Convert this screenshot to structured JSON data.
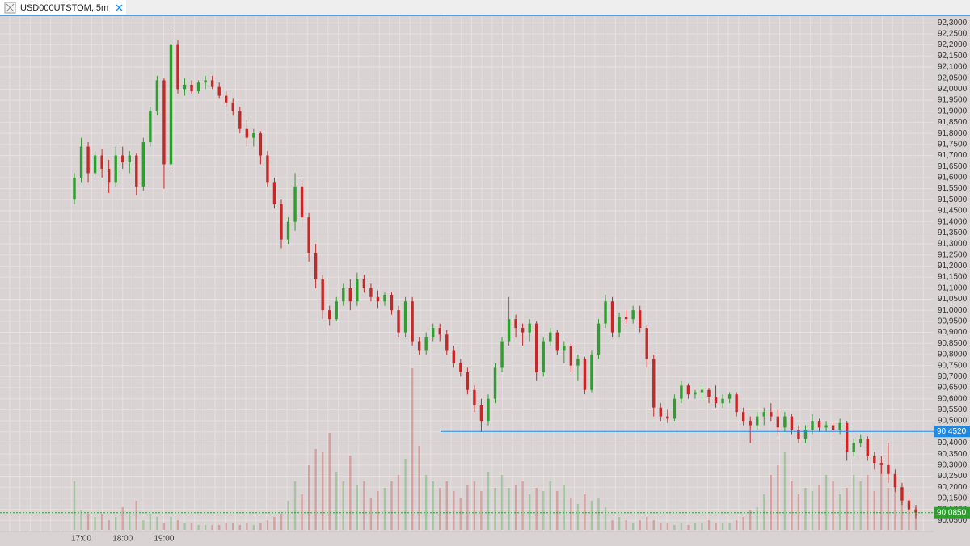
{
  "tab": {
    "title": "USD000UTSTOM, 5m"
  },
  "chart_data": {
    "type": "candlestick",
    "categories": [
      null,
      "17:00",
      null,
      null,
      null,
      null,
      null,
      "18:00",
      null,
      null,
      null,
      null,
      null,
      "19:00",
      null,
      null,
      null,
      null,
      null,
      null,
      null,
      null,
      null,
      null,
      null,
      null,
      null,
      null,
      null,
      null,
      null,
      null,
      null,
      null,
      null,
      null,
      null,
      null,
      null,
      null,
      null,
      null,
      null,
      null,
      null,
      null,
      null,
      null,
      null,
      null,
      null,
      null,
      null,
      null,
      null,
      null,
      null,
      null,
      null,
      null,
      null,
      null,
      null,
      null,
      null,
      null,
      null,
      null,
      null,
      null,
      null,
      null,
      null,
      null,
      null,
      null,
      null,
      null,
      null,
      null,
      null,
      null,
      null,
      null,
      null,
      null,
      null,
      null,
      null,
      null,
      null,
      null,
      null,
      null,
      null,
      null,
      null,
      null,
      null,
      null,
      null,
      null,
      null,
      null,
      null,
      null,
      null,
      null,
      null,
      null,
      null,
      null,
      null,
      null,
      null,
      null,
      null,
      null,
      null,
      null,
      null,
      null,
      null
    ],
    "ohlc": [
      [
        91.5,
        91.62,
        91.48,
        91.6
      ],
      [
        91.6,
        91.78,
        91.58,
        91.74
      ],
      [
        91.74,
        91.76,
        91.58,
        91.62
      ],
      [
        91.62,
        91.72,
        91.6,
        91.7
      ],
      [
        91.7,
        91.73,
        91.6,
        91.64
      ],
      [
        91.64,
        91.68,
        91.53,
        91.58
      ],
      [
        91.58,
        91.74,
        91.56,
        91.7
      ],
      [
        91.7,
        91.74,
        91.64,
        91.67
      ],
      [
        91.67,
        91.72,
        91.62,
        91.7
      ],
      [
        91.7,
        91.71,
        91.52,
        91.56
      ],
      [
        91.56,
        91.78,
        91.54,
        91.76
      ],
      [
        91.76,
        91.92,
        91.74,
        91.9
      ],
      [
        91.9,
        92.06,
        91.88,
        92.04
      ],
      [
        92.04,
        92.05,
        91.55,
        91.66
      ],
      [
        91.66,
        92.26,
        91.64,
        92.2
      ],
      [
        92.2,
        92.22,
        91.98,
        92.0
      ],
      [
        92.0,
        92.05,
        91.97,
        92.02
      ],
      [
        92.02,
        92.04,
        91.98,
        91.99
      ],
      [
        91.99,
        92.04,
        91.98,
        92.03
      ],
      [
        92.03,
        92.06,
        92.0,
        92.04
      ],
      [
        92.04,
        92.06,
        92.0,
        92.01
      ],
      [
        92.01,
        92.03,
        91.96,
        91.97
      ],
      [
        91.97,
        91.99,
        91.92,
        91.94
      ],
      [
        91.94,
        91.96,
        91.88,
        91.9
      ],
      [
        91.9,
        91.92,
        91.8,
        91.82
      ],
      [
        91.82,
        91.86,
        91.74,
        91.78
      ],
      [
        91.78,
        91.82,
        91.74,
        91.8
      ],
      [
        91.8,
        91.81,
        91.66,
        91.7
      ],
      [
        91.7,
        91.72,
        91.56,
        91.58
      ],
      [
        91.58,
        91.6,
        91.46,
        91.48
      ],
      [
        91.48,
        91.5,
        91.28,
        91.32
      ],
      [
        91.32,
        91.42,
        91.3,
        91.4
      ],
      [
        91.4,
        91.62,
        91.36,
        91.56
      ],
      [
        91.56,
        91.6,
        91.38,
        91.42
      ],
      [
        91.42,
        91.44,
        91.22,
        91.26
      ],
      [
        91.26,
        91.3,
        91.1,
        91.14
      ],
      [
        91.14,
        91.16,
        90.96,
        91.0
      ],
      [
        91.0,
        91.02,
        90.93,
        90.96
      ],
      [
        90.96,
        91.06,
        90.95,
        91.04
      ],
      [
        91.04,
        91.12,
        91.02,
        91.1
      ],
      [
        91.1,
        91.14,
        91.0,
        91.04
      ],
      [
        91.04,
        91.17,
        91.02,
        91.14
      ],
      [
        91.14,
        91.16,
        91.08,
        91.1
      ],
      [
        91.1,
        91.12,
        91.04,
        91.06
      ],
      [
        91.06,
        91.09,
        91.01,
        91.04
      ],
      [
        91.04,
        91.08,
        91.02,
        91.07
      ],
      [
        91.07,
        91.08,
        90.98,
        91.0
      ],
      [
        91.0,
        91.02,
        90.88,
        90.9
      ],
      [
        90.9,
        91.06,
        90.88,
        91.04
      ],
      [
        91.04,
        91.06,
        90.84,
        90.86
      ],
      [
        90.86,
        90.88,
        90.8,
        90.82
      ],
      [
        90.82,
        90.9,
        90.8,
        90.88
      ],
      [
        90.88,
        90.94,
        90.86,
        90.92
      ],
      [
        90.92,
        90.94,
        90.86,
        90.89
      ],
      [
        90.89,
        90.91,
        90.8,
        90.82
      ],
      [
        90.82,
        90.84,
        90.74,
        90.76
      ],
      [
        90.76,
        90.78,
        90.7,
        90.72
      ],
      [
        90.72,
        90.74,
        90.62,
        90.64
      ],
      [
        90.64,
        90.66,
        90.54,
        90.57
      ],
      [
        90.57,
        90.6,
        90.45,
        90.5
      ],
      [
        90.5,
        90.62,
        90.48,
        90.6
      ],
      [
        90.6,
        90.76,
        90.58,
        90.74
      ],
      [
        90.74,
        90.88,
        90.72,
        90.86
      ],
      [
        90.86,
        91.06,
        90.84,
        90.96
      ],
      [
        90.96,
        90.98,
        90.88,
        90.92
      ],
      [
        90.92,
        90.94,
        90.84,
        90.9
      ],
      [
        90.9,
        90.96,
        90.86,
        90.94
      ],
      [
        90.94,
        90.95,
        90.68,
        90.72
      ],
      [
        90.72,
        90.88,
        90.7,
        90.86
      ],
      [
        90.86,
        90.92,
        90.84,
        90.9
      ],
      [
        90.9,
        90.91,
        90.8,
        90.82
      ],
      [
        90.82,
        90.86,
        90.76,
        90.84
      ],
      [
        90.84,
        90.85,
        90.72,
        90.75
      ],
      [
        90.75,
        90.8,
        90.68,
        90.78
      ],
      [
        90.78,
        90.79,
        90.62,
        90.64
      ],
      [
        90.64,
        90.82,
        90.63,
        90.8
      ],
      [
        90.8,
        90.96,
        90.78,
        90.94
      ],
      [
        90.94,
        91.07,
        90.92,
        91.04
      ],
      [
        91.04,
        91.06,
        90.88,
        90.9
      ],
      [
        90.9,
        90.99,
        90.88,
        90.97
      ],
      [
        90.97,
        91.0,
        90.94,
        90.96
      ],
      [
        90.96,
        91.02,
        90.94,
        91.0
      ],
      [
        91.0,
        91.02,
        90.9,
        90.92
      ],
      [
        90.92,
        90.93,
        90.74,
        90.78
      ],
      [
        90.78,
        90.8,
        90.52,
        90.56
      ],
      [
        90.56,
        90.58,
        90.5,
        90.52
      ],
      [
        90.52,
        90.55,
        90.49,
        90.51
      ],
      [
        90.51,
        90.62,
        90.5,
        90.6
      ],
      [
        90.6,
        90.68,
        90.58,
        90.66
      ],
      [
        90.66,
        90.67,
        90.6,
        90.62
      ],
      [
        90.62,
        90.64,
        90.6,
        90.63
      ],
      [
        90.63,
        90.66,
        90.6,
        90.64
      ],
      [
        90.64,
        90.65,
        90.58,
        90.61
      ],
      [
        90.61,
        90.66,
        90.56,
        90.58
      ],
      [
        90.58,
        90.62,
        90.56,
        90.6
      ],
      [
        90.6,
        90.63,
        90.58,
        90.62
      ],
      [
        90.62,
        90.63,
        90.52,
        90.54
      ],
      [
        90.54,
        90.56,
        90.48,
        90.5
      ],
      [
        90.5,
        90.52,
        90.4,
        90.48
      ],
      [
        90.48,
        90.54,
        90.46,
        90.52
      ],
      [
        90.52,
        90.56,
        90.48,
        90.54
      ],
      [
        90.54,
        90.58,
        90.5,
        90.52
      ],
      [
        90.52,
        90.55,
        90.44,
        90.47
      ],
      [
        90.47,
        90.54,
        90.45,
        90.52
      ],
      [
        90.52,
        90.53,
        90.44,
        90.46
      ],
      [
        90.46,
        90.48,
        90.4,
        90.42
      ],
      [
        90.42,
        90.48,
        90.4,
        90.46
      ],
      [
        90.46,
        90.53,
        90.44,
        90.5
      ],
      [
        90.5,
        90.51,
        90.45,
        90.47
      ],
      [
        90.47,
        90.5,
        90.45,
        90.48
      ],
      [
        90.48,
        90.49,
        90.44,
        90.46
      ],
      [
        90.46,
        90.51,
        90.44,
        90.49
      ],
      [
        90.49,
        90.5,
        90.32,
        90.36
      ],
      [
        90.36,
        90.42,
        90.34,
        90.4
      ],
      [
        90.4,
        90.44,
        90.38,
        90.42
      ],
      [
        90.42,
        90.43,
        90.32,
        90.34
      ],
      [
        90.34,
        90.36,
        90.28,
        90.31
      ],
      [
        90.31,
        90.34,
        90.26,
        90.3
      ],
      [
        90.3,
        90.4,
        90.22,
        90.26
      ],
      [
        90.26,
        90.28,
        90.18,
        90.2
      ],
      [
        90.2,
        90.22,
        90.12,
        90.14
      ],
      [
        90.14,
        90.16,
        90.08,
        90.1
      ],
      [
        90.1,
        90.12,
        90.06,
        90.085
      ]
    ],
    "volume": [
      30,
      12,
      10,
      8,
      10,
      6,
      8,
      14,
      10,
      18,
      6,
      10,
      8,
      4,
      8,
      6,
      4,
      4,
      3,
      3,
      3,
      3,
      4,
      4,
      3,
      4,
      3,
      4,
      6,
      8,
      10,
      18,
      30,
      22,
      40,
      50,
      48,
      60,
      36,
      30,
      46,
      28,
      30,
      20,
      24,
      26,
      30,
      34,
      44,
      100,
      52,
      34,
      30,
      26,
      30,
      24,
      20,
      28,
      30,
      24,
      36,
      26,
      34,
      26,
      28,
      30,
      22,
      26,
      24,
      30,
      24,
      28,
      20,
      16,
      22,
      18,
      20,
      14,
      6,
      8,
      6,
      4,
      6,
      8,
      6,
      4,
      4,
      3,
      4,
      3,
      4,
      4,
      6,
      4,
      4,
      4,
      6,
      8,
      12,
      14,
      22,
      34,
      40,
      48,
      30,
      22,
      26,
      24,
      28,
      34,
      30,
      22,
      26,
      34,
      30,
      34,
      24,
      40,
      26,
      30,
      22,
      18,
      14
    ],
    "volume_lim": [
      0,
      100
    ],
    "up_color": "#2e9e2e",
    "down_color": "#c62828",
    "ylim": [
      90.0,
      92.33
    ],
    "yticks": [
      {
        "value": 90.05,
        "label": "90,0500"
      },
      {
        "value": 90.1,
        "label": "90,1000"
      },
      {
        "value": 90.15,
        "label": "90,1500"
      },
      {
        "value": 90.2,
        "label": "90,2000"
      },
      {
        "value": 90.25,
        "label": "90,2500"
      },
      {
        "value": 90.3,
        "label": "90,3000"
      },
      {
        "value": 90.35,
        "label": "90,3500"
      },
      {
        "value": 90.4,
        "label": "90,4000"
      },
      {
        "value": 90.45,
        "label": "90,4500"
      },
      {
        "value": 90.5,
        "label": "90,5000"
      },
      {
        "value": 90.55,
        "label": "90,5500"
      },
      {
        "value": 90.6,
        "label": "90,6000"
      },
      {
        "value": 90.65,
        "label": "90,6500"
      },
      {
        "value": 90.7,
        "label": "90,7000"
      },
      {
        "value": 90.75,
        "label": "90,7500"
      },
      {
        "value": 90.8,
        "label": "90,8000"
      },
      {
        "value": 90.85,
        "label": "90,8500"
      },
      {
        "value": 90.9,
        "label": "90,9000"
      },
      {
        "value": 90.95,
        "label": "90,9500"
      },
      {
        "value": 91.0,
        "label": "91,0000"
      },
      {
        "value": 91.05,
        "label": "91,0500"
      },
      {
        "value": 91.1,
        "label": "91,1000"
      },
      {
        "value": 91.15,
        "label": "91,1500"
      },
      {
        "value": 91.2,
        "label": "91,2000"
      },
      {
        "value": 91.25,
        "label": "91,2500"
      },
      {
        "value": 91.3,
        "label": "91,3000"
      },
      {
        "value": 91.35,
        "label": "91,3500"
      },
      {
        "value": 91.4,
        "label": "91,4000"
      },
      {
        "value": 91.45,
        "label": "91,4500"
      },
      {
        "value": 91.5,
        "label": "91,5000"
      },
      {
        "value": 91.55,
        "label": "91,5500"
      },
      {
        "value": 91.6,
        "label": "91,6000"
      },
      {
        "value": 91.65,
        "label": "91,6500"
      },
      {
        "value": 91.7,
        "label": "91,7000"
      },
      {
        "value": 91.75,
        "label": "91,7500"
      },
      {
        "value": 91.8,
        "label": "91,8000"
      },
      {
        "value": 91.85,
        "label": "91,8500"
      },
      {
        "value": 91.9,
        "label": "91,9000"
      },
      {
        "value": 91.95,
        "label": "91,9500"
      },
      {
        "value": 92.0,
        "label": "92,0000"
      },
      {
        "value": 92.05,
        "label": "92,0500"
      },
      {
        "value": 92.1,
        "label": "92,1000"
      },
      {
        "value": 92.15,
        "label": "92,1500"
      },
      {
        "value": 92.2,
        "label": "92,2000"
      },
      {
        "value": 92.25,
        "label": "92,2500"
      },
      {
        "value": 92.3,
        "label": "92,3000"
      }
    ],
    "grid": true,
    "price_lines": [
      {
        "value": 90.452,
        "label": "90,4520",
        "color": "#1e88e5",
        "style": "solid"
      },
      {
        "value": 90.085,
        "label": "90,0850",
        "color": "#2e9e2e",
        "style": "dashed"
      }
    ]
  }
}
